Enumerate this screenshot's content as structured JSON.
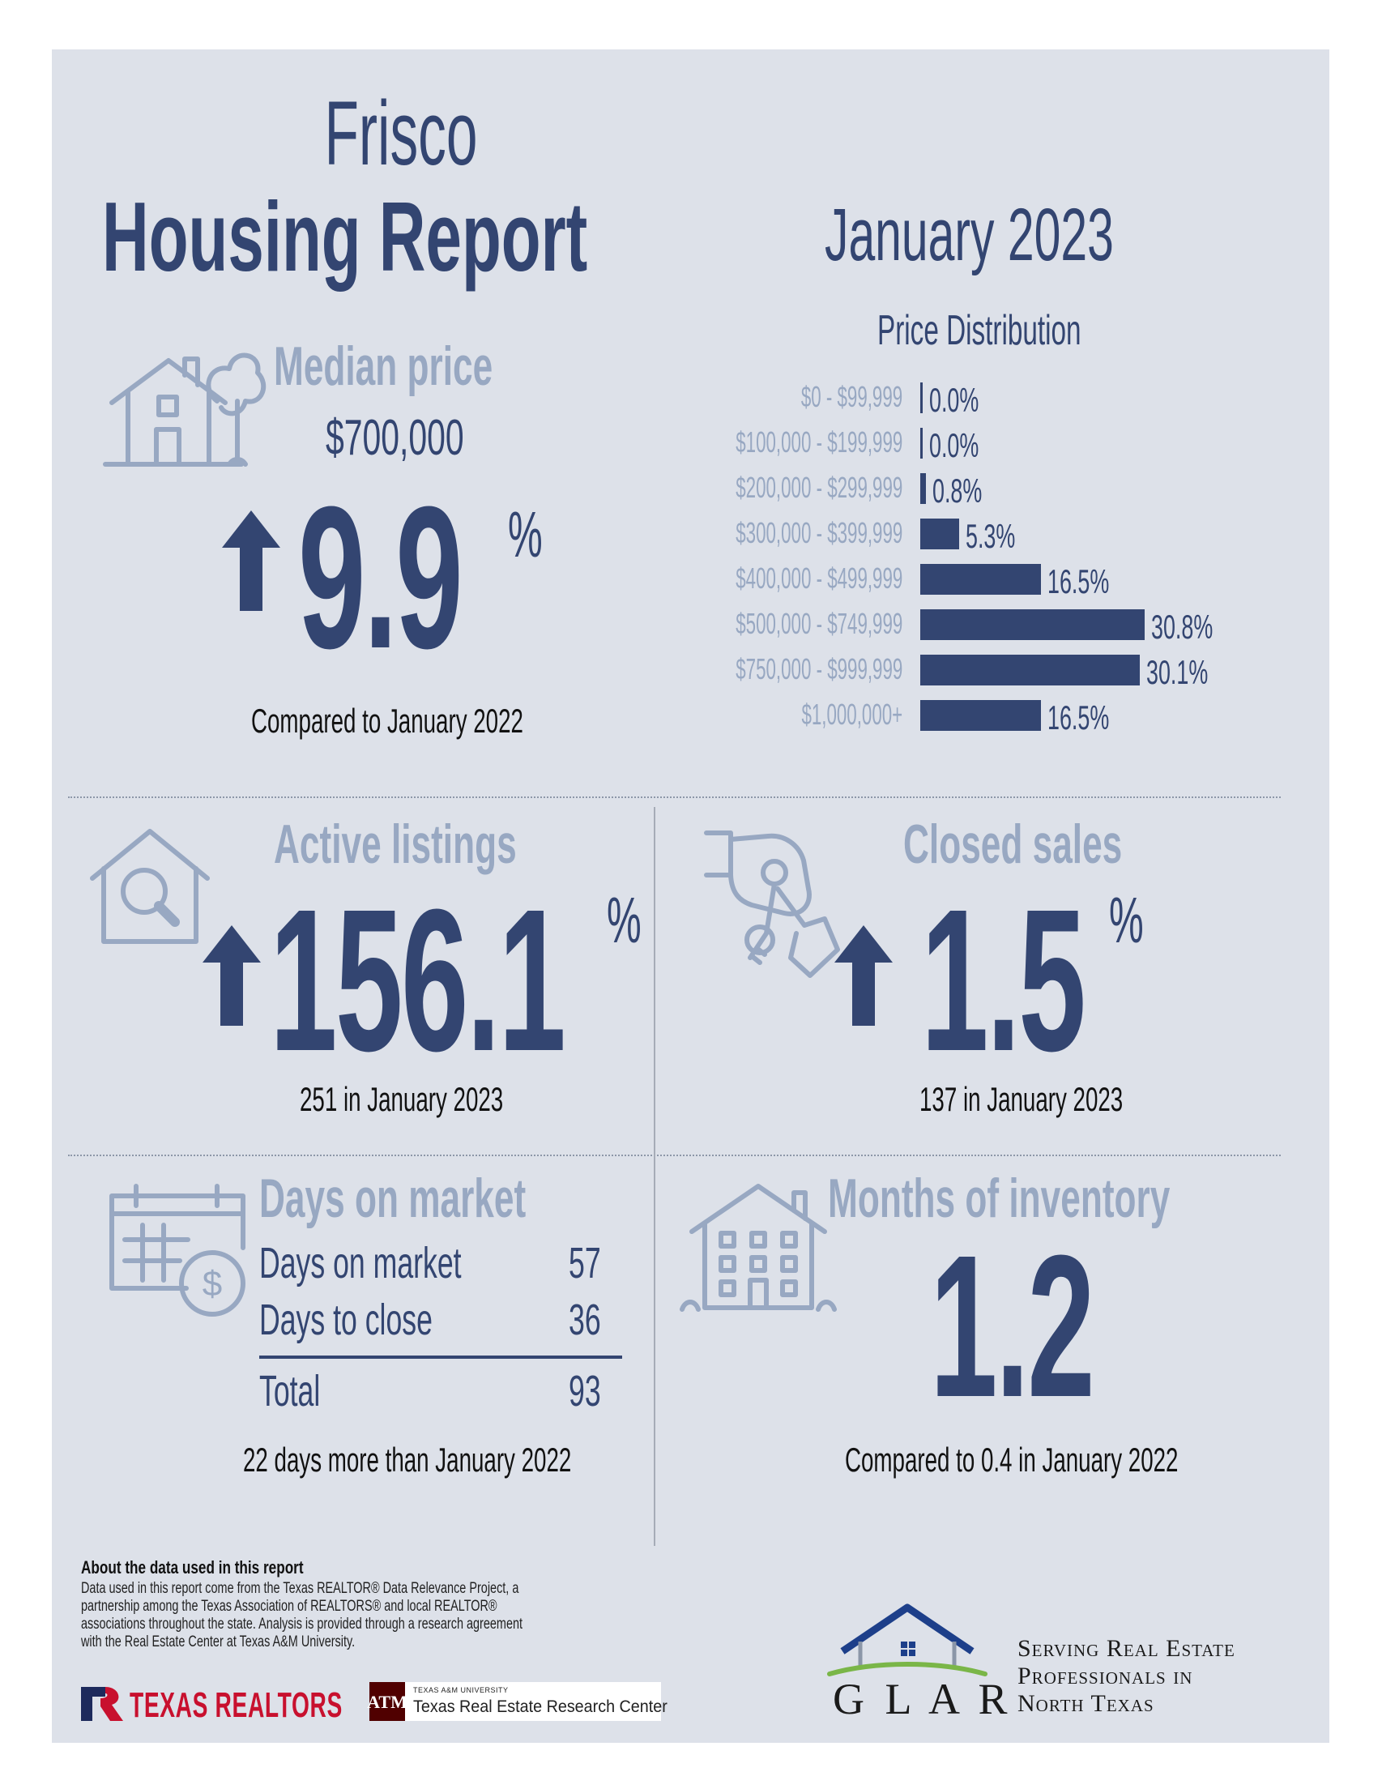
{
  "header": {
    "city": "Frisco",
    "title": "Housing Report",
    "month": "January 2023"
  },
  "median_price": {
    "label": "Median price",
    "value": "$700,000",
    "change": "9.9",
    "unit": "%",
    "direction": "up",
    "compare": "Compared to January 2022"
  },
  "price_distribution": {
    "title": "Price Distribution"
  },
  "chart_data": {
    "type": "bar",
    "orientation": "horizontal",
    "title": "Price Distribution",
    "categories": [
      "$0 - $99,999",
      "$100,000 - $199,999",
      "$200,000 - $299,999",
      "$300,000 - $399,999",
      "$400,000 - $499,999",
      "$500,000 - $749,999",
      "$750,000 - $999,999",
      "$1,000,000+"
    ],
    "values": [
      0.0,
      0.0,
      0.8,
      5.3,
      16.5,
      30.8,
      30.1,
      16.5
    ],
    "value_labels": [
      "0.0%",
      "0.0%",
      "0.8%",
      "5.3%",
      "16.5%",
      "30.8%",
      "30.1%",
      "16.5%"
    ],
    "bar_color": "#334571"
  },
  "active_listings": {
    "label": "Active listings",
    "change": "156.1",
    "unit": "%",
    "direction": "up",
    "note": "251 in January 2023"
  },
  "closed_sales": {
    "label": "Closed sales",
    "change": "1.5",
    "unit": "%",
    "direction": "up",
    "note": "137 in January 2023"
  },
  "days_on_market": {
    "label": "Days on market",
    "rows": [
      {
        "name": "Days on market",
        "value": "57"
      },
      {
        "name": "Days to close",
        "value": "36"
      }
    ],
    "total_label": "Total",
    "total_value": "93",
    "note": "22 days more than January 2022"
  },
  "months_inventory": {
    "label": "Months of inventory",
    "value": "1.2",
    "note": "Compared to 0.4 in January 2022"
  },
  "footer": {
    "about_title": "About the data used in this report",
    "about_lines": [
      "Data used in this report come from the Texas REALTOR® Data Relevance Project, a",
      "partnership among the Texas Association of REALTORS® and local REALTOR®",
      "associations throughout the state. Analysis is provided through a research agreement",
      "with the Real Estate Center at Texas A&M University."
    ],
    "texas_realtors": "TEXAS REALTORS",
    "tamu_small": "TEXAS A&M UNIVERSITY",
    "tamu_center": "Texas Real Estate Research Center",
    "glar": "G L A R",
    "glar_tagline": [
      "Serving Real Estate",
      "Professionals in",
      "North Texas"
    ]
  },
  "colors": {
    "navy": "#334571",
    "pale": "#98a8c2",
    "background": "#dde1e9",
    "glar_green": "#7ab648",
    "texas_red": "#c8102e",
    "tamu_maroon": "#500000"
  },
  "icons": [
    "house-tree-icon",
    "up-arrow-icon",
    "house-search-icon",
    "hand-keys-icon",
    "calendar-dollar-icon",
    "building-icon",
    "glar-house-logo-icon",
    "texas-realtors-logo-icon",
    "tamu-logo-icon"
  ]
}
